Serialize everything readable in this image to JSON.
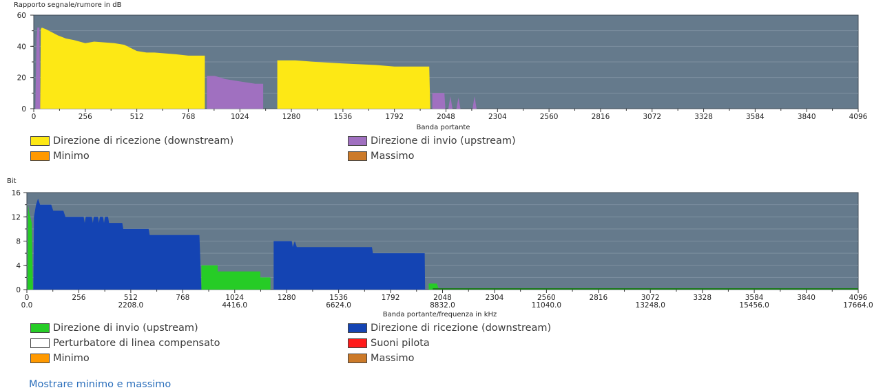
{
  "chart_data": [
    {
      "type": "area",
      "ylabel": "Rapporto segnale/rumore in dB",
      "xlabel": "Banda portante",
      "xlim": [
        0,
        4096
      ],
      "ylim": [
        0,
        60
      ],
      "yticks": [
        0,
        20,
        40,
        60
      ],
      "xticks": [
        "0",
        "256",
        "512",
        "768",
        "1024",
        "1280",
        "1536",
        "1792",
        "2048",
        "2304",
        "2560",
        "2816",
        "3072",
        "3328",
        "3584",
        "3840",
        "4096"
      ],
      "background": "#657a8c",
      "grid": true,
      "series": [
        {
          "name": "Direzione di invio  (upstream)",
          "color": "#a070c0",
          "polygons": [
            [
              [
                8,
                0
              ],
              [
                14,
                45
              ],
              [
                18,
                52
              ],
              [
                28,
                52
              ],
              [
                32,
                0
              ]
            ],
            [
              [
                860,
                0
              ],
              [
                860,
                21
              ],
              [
                900,
                21
              ],
              [
                950,
                19
              ],
              [
                1000,
                18
              ],
              [
                1050,
                17
              ],
              [
                1100,
                16
              ],
              [
                1140,
                16
              ],
              [
                1140,
                0
              ]
            ],
            [
              [
                1980,
                0
              ],
              [
                1980,
                10
              ],
              [
                2040,
                10
              ],
              [
                2045,
                0
              ]
            ],
            [
              [
                2060,
                0
              ],
              [
                2070,
                8
              ],
              [
                2080,
                0
              ]
            ],
            [
              [
                2100,
                0
              ],
              [
                2110,
                7
              ],
              [
                2120,
                0
              ]
            ],
            [
              [
                2180,
                0
              ],
              [
                2190,
                8
              ],
              [
                2200,
                0
              ]
            ]
          ]
        },
        {
          "name": "Direzione di ricezione  (downstream)",
          "color": "#fde815",
          "polygons": [
            [
              [
                32,
                0
              ],
              [
                35,
                51
              ],
              [
                40,
                52
              ],
              [
                60,
                51
              ],
              [
                90,
                49
              ],
              [
                120,
                47
              ],
              [
                160,
                45
              ],
              [
                200,
                44
              ],
              [
                256,
                42
              ],
              [
                300,
                43
              ],
              [
                400,
                42
              ],
              [
                450,
                41
              ],
              [
                512,
                37
              ],
              [
                560,
                36
              ],
              [
                600,
                36
              ],
              [
                700,
                35
              ],
              [
                768,
                34
              ],
              [
                850,
                34
              ],
              [
                850,
                0
              ]
            ],
            [
              [
                1210,
                0
              ],
              [
                1210,
                31
              ],
              [
                1300,
                31
              ],
              [
                1400,
                30
              ],
              [
                1536,
                29
              ],
              [
                1700,
                28
              ],
              [
                1792,
                27
              ],
              [
                1950,
                27
              ],
              [
                1965,
                27
              ],
              [
                1970,
                0
              ]
            ]
          ]
        }
      ],
      "legend": [
        {
          "name": "Direzione di ricezione  (downstream)",
          "color": "#fde815"
        },
        {
          "name": "Direzione di invio  (upstream)",
          "color": "#a070c0"
        },
        {
          "name": "Minimo",
          "color": "#ff9900"
        },
        {
          "name": "Massimo",
          "color": "#cc7a29"
        }
      ]
    },
    {
      "type": "area",
      "ylabel": "Bit",
      "xlabel": "Banda portante/frequenza in kHz",
      "xlim": [
        0,
        4096
      ],
      "ylim": [
        0,
        16
      ],
      "yticks": [
        0,
        4,
        8,
        12,
        16
      ],
      "xticks": [
        "0",
        "256",
        "512",
        "768",
        "1024",
        "1280",
        "1536",
        "1792",
        "2048",
        "2304",
        "2560",
        "2816",
        "3072",
        "3328",
        "3584",
        "3840",
        "4096"
      ],
      "xticks_secondary": [
        {
          "carrier": 0,
          "label": "0.0"
        },
        {
          "carrier": 512,
          "label": "2208.0"
        },
        {
          "carrier": 1024,
          "label": "4416.0"
        },
        {
          "carrier": 1536,
          "label": "6624.0"
        },
        {
          "carrier": 2048,
          "label": "8832.0"
        },
        {
          "carrier": 2560,
          "label": "11040.0"
        },
        {
          "carrier": 3072,
          "label": "13248.0"
        },
        {
          "carrier": 3584,
          "label": "15456.0"
        },
        {
          "carrier": 4096,
          "label": "17664.0"
        }
      ],
      "background": "#657a8c",
      "grid": true,
      "series": [
        {
          "name": "Direzione di invio  (upstream)",
          "color": "#26cc26",
          "polygons": [
            [
              [
                3,
                0
              ],
              [
                6,
                14
              ],
              [
                10,
                13
              ],
              [
                24,
                11
              ],
              [
                30,
                0
              ]
            ],
            [
              [
                860,
                0
              ],
              [
                860,
                4
              ],
              [
                940,
                4
              ],
              [
                940,
                3
              ],
              [
                1150,
                3
              ],
              [
                1150,
                2
              ],
              [
                1200,
                2
              ],
              [
                1200,
                0
              ]
            ],
            [
              [
                1980,
                0
              ],
              [
                1980,
                1
              ],
              [
                2020,
                1
              ],
              [
                2030,
                0
              ]
            ]
          ]
        },
        {
          "name": "Direzione di ricezione  (downstream)",
          "color": "#1444b3",
          "polygons": [
            [
              [
                32,
                0
              ],
              [
                35,
                12
              ],
              [
                45,
                14
              ],
              [
                55,
                15
              ],
              [
                65,
                14
              ],
              [
                120,
                14
              ],
              [
                130,
                13
              ],
              [
                180,
                13
              ],
              [
                190,
                12
              ],
              [
                280,
                12
              ],
              [
                285,
                11
              ],
              [
                290,
                12
              ],
              [
                320,
                12
              ],
              [
                325,
                11
              ],
              [
                330,
                12
              ],
              [
                350,
                12
              ],
              [
                355,
                11
              ],
              [
                360,
                12
              ],
              [
                375,
                12
              ],
              [
                380,
                11
              ],
              [
                385,
                12
              ],
              [
                400,
                12
              ],
              [
                405,
                11
              ],
              [
                470,
                11
              ],
              [
                475,
                10
              ],
              [
                600,
                10
              ],
              [
                605,
                9
              ],
              [
                850,
                9
              ],
              [
                860,
                0
              ]
            ],
            [
              [
                1216,
                0
              ],
              [
                1216,
                8
              ],
              [
                1305,
                8
              ],
              [
                1310,
                7
              ],
              [
                1320,
                8
              ],
              [
                1330,
                7
              ],
              [
                1700,
                7
              ],
              [
                1705,
                6
              ],
              [
                1960,
                6
              ],
              [
                1962,
                0
              ]
            ]
          ]
        }
      ],
      "legend": [
        {
          "name": "Direzione di invio  (upstream)",
          "color": "#26cc26"
        },
        {
          "name": "Direzione di ricezione  (downstream)",
          "color": "#1444b3"
        },
        {
          "name": "Perturbatore di linea compensato",
          "color": "#ffffff"
        },
        {
          "name": "Suoni pilota",
          "color": "#ff1a1a"
        },
        {
          "name": "Minimo",
          "color": "#ff9900"
        },
        {
          "name": "Massimo",
          "color": "#cc7a29"
        }
      ]
    }
  ],
  "link": {
    "label": "Mostrare minimo e massimo"
  }
}
